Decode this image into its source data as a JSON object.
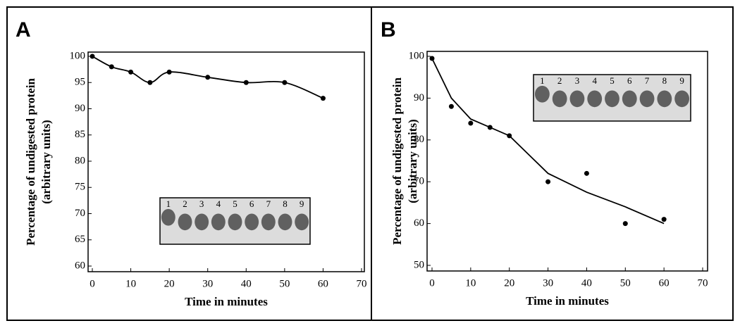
{
  "chart_data": [
    {
      "type": "scatter",
      "panel_label": "A",
      "xlabel": "Time in minutes",
      "ylabel": [
        "Percentage of undigested protein",
        "(arbitrary  units)"
      ],
      "x": [
        0,
        5,
        10,
        15,
        20,
        30,
        40,
        50,
        60
      ],
      "series": [
        {
          "color": "#000000",
          "mode": "markers+spline",
          "values": [
            100,
            98,
            97,
            95,
            97,
            96,
            95,
            95,
            92
          ]
        }
      ],
      "xlim": [
        0,
        70
      ],
      "xticks": [
        0,
        10,
        20,
        30,
        40,
        50,
        60,
        70
      ],
      "ylim": [
        60,
        100
      ],
      "yticks": [
        60,
        65,
        70,
        75,
        80,
        85,
        90,
        95,
        100
      ],
      "inset_labels": [
        "1",
        "2",
        "3",
        "4",
        "5",
        "6",
        "7",
        "8",
        "9"
      ]
    },
    {
      "type": "scatter",
      "panel_label": "B",
      "xlabel": "Time in minutes",
      "ylabel": [
        "Percentage of undigested protein",
        "(arbitrary units)"
      ],
      "x": [
        0,
        5,
        10,
        15,
        20,
        30,
        40,
        50,
        60
      ],
      "series": [
        {
          "color": "#000000",
          "mode": "markers",
          "values": [
            99.5,
            88,
            84,
            83,
            81,
            70,
            72,
            60,
            61
          ]
        },
        {
          "color": "#000000",
          "mode": "line",
          "values": [
            99.5,
            90,
            85,
            83,
            81,
            72,
            67.5,
            64,
            60
          ]
        }
      ],
      "xlim": [
        0,
        70
      ],
      "xticks": [
        0,
        10,
        20,
        30,
        40,
        50,
        60,
        70
      ],
      "ylim": [
        50,
        100
      ],
      "yticks": [
        50,
        60,
        70,
        80,
        90,
        100
      ],
      "inset_labels": [
        "1",
        "2",
        "3",
        "4",
        "5",
        "6",
        "7",
        "8",
        "9"
      ]
    }
  ]
}
